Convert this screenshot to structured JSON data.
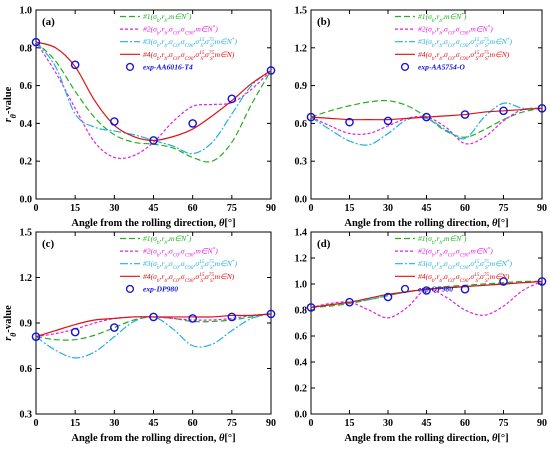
{
  "chart_data": [
    {
      "panel": "(a)",
      "type": "line",
      "xlabel": "Angle from the rolling direction, θ[°]",
      "ylabel": "rθ-value",
      "xlim": [
        0,
        90
      ],
      "ylim": [
        0.0,
        1.0
      ],
      "xticks": [
        "0",
        "15",
        "30",
        "45",
        "60",
        "75",
        "90"
      ],
      "yticks": [
        "0.0",
        "0.2",
        "0.4",
        "0.6",
        "0.8",
        "1.0"
      ],
      "legend_position": "top-right",
      "series": [
        {
          "name": "#1(σb,rb,m∈N*)",
          "color": "#22b022",
          "dash": "6,3",
          "x": [
            0,
            7.5,
            15,
            22.5,
            30,
            37.5,
            45,
            52.5,
            60,
            67.5,
            75,
            82.5,
            90
          ],
          "values": [
            0.83,
            0.73,
            0.57,
            0.43,
            0.34,
            0.3,
            0.29,
            0.27,
            0.22,
            0.2,
            0.3,
            0.5,
            0.68
          ]
        },
        {
          "name": "#2(σb,rb,σC0,σC90,m∈N*)",
          "color": "#e020e0",
          "dash": "3,2",
          "x": [
            0,
            7.5,
            15,
            22.5,
            30,
            37.5,
            45,
            52.5,
            60,
            67.5,
            75,
            82.5,
            90
          ],
          "values": [
            0.83,
            0.67,
            0.48,
            0.3,
            0.22,
            0.23,
            0.3,
            0.41,
            0.49,
            0.5,
            0.51,
            0.58,
            0.68
          ]
        },
        {
          "name": "#3(σb,rb,σC0,σC90,σB15,σB75,m∈N*)",
          "color": "#20b0e0",
          "dash": "8,2,2,2",
          "x": [
            0,
            7.5,
            15,
            22.5,
            30,
            37.5,
            45,
            52.5,
            60,
            67.5,
            75,
            82.5,
            90
          ],
          "values": [
            0.83,
            0.7,
            0.45,
            0.38,
            0.36,
            0.34,
            0.31,
            0.28,
            0.24,
            0.3,
            0.45,
            0.6,
            0.68
          ]
        },
        {
          "name": "#4(σb,rb,σC0,σC90,σB15,σB75,m∈N)",
          "color": "#e01010",
          "dash": "",
          "x": [
            0,
            7.5,
            15,
            22.5,
            30,
            37.5,
            45,
            52.5,
            60,
            67.5,
            75,
            82.5,
            90
          ],
          "values": [
            0.83,
            0.8,
            0.7,
            0.52,
            0.39,
            0.33,
            0.31,
            0.33,
            0.37,
            0.44,
            0.52,
            0.61,
            0.68
          ]
        }
      ],
      "points": {
        "name": "exp-AA6016-T4",
        "color": "#1010e0",
        "x": [
          0,
          15,
          30,
          45,
          60,
          75,
          90
        ],
        "values": [
          0.83,
          0.71,
          0.41,
          0.31,
          0.4,
          0.53,
          0.68
        ]
      }
    },
    {
      "panel": "(b)",
      "type": "line",
      "xlabel": "Angle from the rolling direction, θ[°]",
      "ylabel": "",
      "xlim": [
        0,
        90
      ],
      "ylim": [
        0.0,
        1.5
      ],
      "xticks": [
        "0",
        "15",
        "30",
        "45",
        "60",
        "75",
        "90"
      ],
      "yticks": [
        "0.0",
        "0.3",
        "0.6",
        "0.9",
        "1.2",
        "1.5"
      ],
      "legend_position": "top-right",
      "series": [
        {
          "name": "#1(σb,rb,m∈N*)",
          "color": "#22b022",
          "dash": "6,3",
          "x": [
            0,
            7.5,
            15,
            22.5,
            30,
            37.5,
            45,
            52.5,
            60,
            67.5,
            75,
            82.5,
            90
          ],
          "values": [
            0.65,
            0.7,
            0.74,
            0.77,
            0.78,
            0.74,
            0.65,
            0.54,
            0.49,
            0.55,
            0.63,
            0.69,
            0.72
          ]
        },
        {
          "name": "#2(σb,rb,σC0,σC90,m∈N*)",
          "color": "#e020e0",
          "dash": "3,2",
          "x": [
            0,
            7.5,
            15,
            22.5,
            30,
            37.5,
            45,
            52.5,
            60,
            67.5,
            75,
            82.5,
            90
          ],
          "values": [
            0.65,
            0.58,
            0.52,
            0.52,
            0.58,
            0.64,
            0.65,
            0.57,
            0.44,
            0.49,
            0.62,
            0.71,
            0.72
          ]
        },
        {
          "name": "#3(σb,rb,σC0,σC90,σB15,σB75,m∈N*)",
          "color": "#20b0e0",
          "dash": "8,2,2,2",
          "x": [
            0,
            7.5,
            15,
            22.5,
            30,
            37.5,
            45,
            52.5,
            60,
            67.5,
            75,
            82.5,
            90
          ],
          "values": [
            0.65,
            0.55,
            0.46,
            0.43,
            0.52,
            0.63,
            0.64,
            0.55,
            0.48,
            0.65,
            0.76,
            0.72,
            0.72
          ]
        },
        {
          "name": "#4(σb,rb,σC0,σC90,σB15,σB75,m∈N)",
          "color": "#e01010",
          "dash": "",
          "x": [
            0,
            7.5,
            15,
            22.5,
            30,
            37.5,
            45,
            52.5,
            60,
            67.5,
            75,
            82.5,
            90
          ],
          "values": [
            0.65,
            0.64,
            0.63,
            0.63,
            0.63,
            0.64,
            0.65,
            0.66,
            0.67,
            0.69,
            0.7,
            0.71,
            0.72
          ]
        }
      ],
      "points": {
        "name": "exp-AA5754-O",
        "color": "#1010e0",
        "x": [
          0,
          15,
          30,
          45,
          60,
          75,
          90
        ],
        "values": [
          0.65,
          0.61,
          0.62,
          0.65,
          0.67,
          0.7,
          0.72
        ]
      }
    },
    {
      "panel": "(c)",
      "type": "line",
      "xlabel": "Angle from the rolling direction, θ[°]",
      "ylabel": "rθ-value",
      "xlim": [
        0,
        90
      ],
      "ylim": [
        0.3,
        1.5
      ],
      "xticks": [
        "0",
        "15",
        "30",
        "45",
        "60",
        "75",
        "90"
      ],
      "yticks": [
        "0.3",
        "0.6",
        "0.9",
        "1.2",
        "1.5"
      ],
      "legend_position": "top-right",
      "series": [
        {
          "name": "#1(σb,rb,m∈N*)",
          "color": "#22b022",
          "dash": "6,3",
          "x": [
            0,
            7.5,
            15,
            22.5,
            30,
            37.5,
            45,
            52.5,
            60,
            67.5,
            75,
            82.5,
            90
          ],
          "values": [
            0.81,
            0.79,
            0.79,
            0.82,
            0.87,
            0.92,
            0.94,
            0.93,
            0.91,
            0.91,
            0.92,
            0.94,
            0.96
          ]
        },
        {
          "name": "#2(σb,rb,σC0,σC90,m∈N*)",
          "color": "#e020e0",
          "dash": "3,2",
          "x": [
            0,
            7.5,
            15,
            22.5,
            30,
            37.5,
            45,
            52.5,
            60,
            67.5,
            75,
            82.5,
            90
          ],
          "values": [
            0.81,
            0.83,
            0.86,
            0.9,
            0.93,
            0.94,
            0.94,
            0.93,
            0.92,
            0.92,
            0.93,
            0.95,
            0.96
          ]
        },
        {
          "name": "#3(σb,rb,σC0,σC90,σB15,σB75,m∈N*)",
          "color": "#20b0e0",
          "dash": "8,2,2,2",
          "x": [
            0,
            7.5,
            15,
            22.5,
            30,
            37.5,
            45,
            52.5,
            60,
            67.5,
            75,
            82.5,
            90
          ],
          "values": [
            0.81,
            0.72,
            0.67,
            0.71,
            0.81,
            0.91,
            0.94,
            0.86,
            0.75,
            0.76,
            0.85,
            0.93,
            0.96
          ]
        },
        {
          "name": "#4(σb,rb,σC0,σC90,σB15,σB75,m∈N)",
          "color": "#e01010",
          "dash": "",
          "x": [
            0,
            7.5,
            15,
            22.5,
            30,
            37.5,
            45,
            52.5,
            60,
            67.5,
            75,
            82.5,
            90
          ],
          "values": [
            0.81,
            0.85,
            0.89,
            0.92,
            0.93,
            0.94,
            0.94,
            0.94,
            0.94,
            0.94,
            0.95,
            0.95,
            0.96
          ]
        }
      ],
      "points": {
        "name": "exp-DP980",
        "color": "#1010e0",
        "x": [
          0,
          15,
          30,
          45,
          60,
          75,
          90
        ],
        "values": [
          0.81,
          0.84,
          0.87,
          0.94,
          0.93,
          0.94,
          0.96
        ]
      }
    },
    {
      "panel": "(d)",
      "type": "line",
      "xlabel": "Angle from the rolling direction, θ[°]",
      "ylabel": "",
      "xlim": [
        0,
        90
      ],
      "ylim": [
        0.0,
        1.4
      ],
      "xticks": [
        "0",
        "15",
        "30",
        "45",
        "60",
        "75",
        "90"
      ],
      "yticks": [
        "0.0",
        "0.2",
        "0.4",
        "0.6",
        "0.8",
        "1.0",
        "1.2",
        "1.4"
      ],
      "legend_position": "top-right",
      "series": [
        {
          "name": "#1(σb,rb,m∈N*)",
          "color": "#22b022",
          "dash": "6,3",
          "x": [
            0,
            7.5,
            15,
            22.5,
            30,
            37.5,
            45,
            52.5,
            60,
            67.5,
            75,
            82.5,
            90
          ],
          "values": [
            0.82,
            0.83,
            0.85,
            0.88,
            0.91,
            0.94,
            0.96,
            0.98,
            0.99,
            1.0,
            1.01,
            1.02,
            1.02
          ]
        },
        {
          "name": "#2(σb,rb,σC0,σC90,m∈N*)",
          "color": "#e020e0",
          "dash": "3,2",
          "x": [
            0,
            7.5,
            15,
            22.5,
            30,
            37.5,
            45,
            52.5,
            60,
            67.5,
            75,
            82.5,
            90
          ],
          "values": [
            0.82,
            0.85,
            0.86,
            0.8,
            0.74,
            0.82,
            0.96,
            0.9,
            0.8,
            0.76,
            0.83,
            0.95,
            1.02
          ]
        },
        {
          "name": "#3(σb,rb,σC0,σC90,σB15,σB75,m∈N*)",
          "color": "#20b0e0",
          "dash": "8,2,2,2",
          "x": [
            0,
            7.5,
            15,
            22.5,
            30,
            37.5,
            45,
            52.5,
            60,
            67.5,
            75,
            82.5,
            90
          ],
          "values": [
            0.82,
            0.84,
            0.86,
            0.88,
            0.91,
            0.94,
            0.96,
            0.97,
            0.98,
            0.99,
            1.0,
            1.01,
            1.02
          ]
        },
        {
          "name": "#4(σb,rb,σC0,σC90,σB15,σB75,m∈N)",
          "color": "#e01010",
          "dash": "",
          "x": [
            0,
            7.5,
            15,
            22.5,
            30,
            37.5,
            45,
            52.5,
            60,
            67.5,
            75,
            82.5,
            90
          ],
          "values": [
            0.82,
            0.84,
            0.86,
            0.89,
            0.92,
            0.94,
            0.96,
            0.97,
            0.98,
            0.99,
            1.0,
            1.01,
            1.02
          ]
        }
      ],
      "points": {
        "name": "exp-QP980",
        "color": "#1010e0",
        "x": [
          0,
          15,
          30,
          45,
          60,
          75,
          90
        ],
        "values": [
          0.82,
          0.86,
          0.9,
          0.95,
          0.96,
          1.02,
          1.02
        ]
      }
    }
  ]
}
